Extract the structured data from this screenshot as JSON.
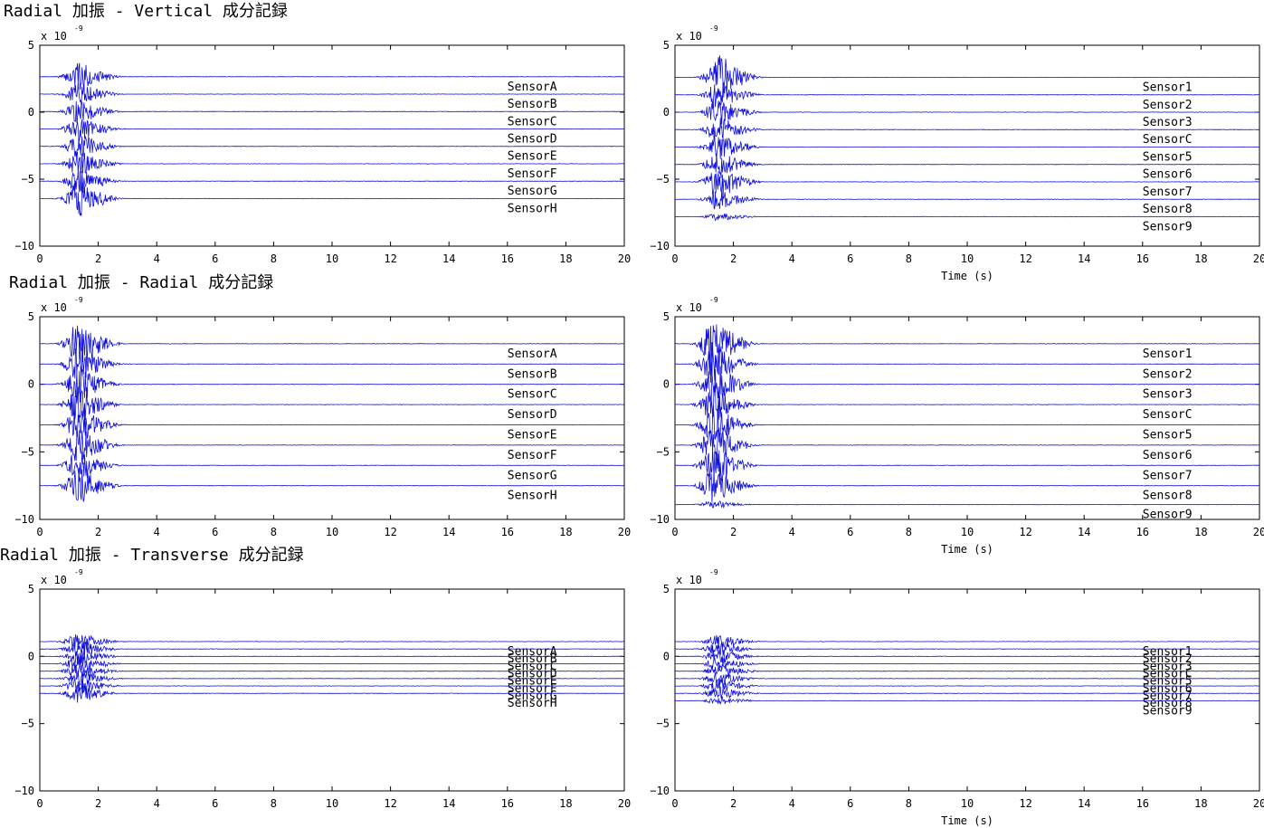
{
  "sections": [
    {
      "title": "Radial 加振 -  Vertical 成分記録"
    },
    {
      "title": "Radial 加振 -   Radial 成分記録"
    },
    {
      "title": "Radial 加振 - Transverse 成分記録"
    }
  ],
  "chart_data": [
    {
      "type": "line",
      "section": 0,
      "side": "left",
      "xlim": [
        0,
        20
      ],
      "ylim": [
        -10,
        5
      ],
      "xticks": [
        0,
        2,
        4,
        6,
        8,
        10,
        12,
        14,
        16,
        18,
        20
      ],
      "yticks": [
        5,
        0,
        -5,
        -10
      ],
      "y_multiplier": "x 10",
      "y_exponent": "-9",
      "xlabel": "",
      "onset_s": 0.45,
      "peak_s": 1.35,
      "envelope": [
        0,
        0.4
      ],
      "series": [
        {
          "name": "SensorA",
          "offset": 2.65,
          "amp": 1.0
        },
        {
          "name": "SensorB",
          "offset": 1.35,
          "amp": 0.8
        },
        {
          "name": "SensorC",
          "offset": 0.05,
          "amp": 0.9
        },
        {
          "name": "SensorD",
          "offset": -1.25,
          "amp": 0.9
        },
        {
          "name": "SensorE",
          "offset": -2.55,
          "amp": 0.9
        },
        {
          "name": "SensorF",
          "offset": -3.85,
          "amp": 0.9
        },
        {
          "name": "SensorG",
          "offset": -5.15,
          "amp": 0.9
        },
        {
          "name": "SensorH",
          "offset": -6.45,
          "amp": 1.3
        }
      ]
    },
    {
      "type": "line",
      "section": 0,
      "side": "right",
      "xlim": [
        0,
        20
      ],
      "ylim": [
        -10,
        5
      ],
      "xticks": [
        0,
        2,
        4,
        6,
        8,
        10,
        12,
        14,
        16,
        18,
        20
      ],
      "yticks": [
        5,
        0,
        -5,
        -10
      ],
      "y_multiplier": "x 10",
      "y_exponent": "-9",
      "xlabel": "Time (s)",
      "onset_s": 0.5,
      "peak_s": 1.5,
      "envelope": [
        0,
        0.4
      ],
      "series": [
        {
          "name": "Sensor1",
          "offset": 2.6,
          "amp": 1.6
        },
        {
          "name": "Sensor2",
          "offset": 1.3,
          "amp": 1.0
        },
        {
          "name": "Sensor3",
          "offset": 0.0,
          "amp": 1.0
        },
        {
          "name": "SensorC",
          "offset": -1.3,
          "amp": 1.0
        },
        {
          "name": "Sensor5",
          "offset": -2.6,
          "amp": 1.0
        },
        {
          "name": "Sensor6",
          "offset": -3.9,
          "amp": 1.0
        },
        {
          "name": "Sensor7",
          "offset": -5.2,
          "amp": 1.3
        },
        {
          "name": "Sensor8",
          "offset": -6.5,
          "amp": 0.8
        },
        {
          "name": "Sensor9",
          "offset": -7.8,
          "amp": 0.3
        }
      ]
    },
    {
      "type": "line",
      "section": 1,
      "side": "left",
      "xlim": [
        0,
        20
      ],
      "ylim": [
        -10,
        5
      ],
      "xticks": [
        0,
        2,
        4,
        6,
        8,
        10,
        12,
        14,
        16,
        18,
        20
      ],
      "yticks": [
        5,
        0,
        -5,
        -10
      ],
      "y_multiplier": "x 10",
      "y_exponent": "-9",
      "xlabel": "",
      "onset_s": 0.45,
      "peak_s": 1.35,
      "envelope": [
        0,
        0.4
      ],
      "series": [
        {
          "name": "SensorA",
          "offset": 3.0,
          "amp": 1.6
        },
        {
          "name": "SensorB",
          "offset": 1.5,
          "amp": 1.3
        },
        {
          "name": "SensorC",
          "offset": 0.0,
          "amp": 1.3
        },
        {
          "name": "SensorD",
          "offset": -1.5,
          "amp": 1.3
        },
        {
          "name": "SensorE",
          "offset": -3.0,
          "amp": 1.3
        },
        {
          "name": "SensorF",
          "offset": -4.5,
          "amp": 1.3
        },
        {
          "name": "SensorG",
          "offset": -6.0,
          "amp": 1.2
        },
        {
          "name": "SensorH",
          "offset": -7.5,
          "amp": 1.3
        }
      ]
    },
    {
      "type": "line",
      "section": 1,
      "side": "right",
      "xlim": [
        0,
        20
      ],
      "ylim": [
        -10,
        5
      ],
      "xticks": [
        0,
        2,
        4,
        6,
        8,
        10,
        12,
        14,
        16,
        18,
        20
      ],
      "yticks": [
        5,
        0,
        -5,
        -10
      ],
      "y_multiplier": "x 10",
      "y_exponent": "-9",
      "xlabel": "Time (s)",
      "onset_s": 0.5,
      "peak_s": 1.35,
      "envelope": [
        0,
        0.4
      ],
      "series": [
        {
          "name": "Sensor1",
          "offset": 3.0,
          "amp": 1.8
        },
        {
          "name": "Sensor2",
          "offset": 1.5,
          "amp": 1.5
        },
        {
          "name": "Sensor3",
          "offset": 0.0,
          "amp": 1.5
        },
        {
          "name": "SensorC",
          "offset": -1.5,
          "amp": 1.4
        },
        {
          "name": "Sensor5",
          "offset": -3.0,
          "amp": 1.4
        },
        {
          "name": "Sensor6",
          "offset": -4.5,
          "amp": 1.4
        },
        {
          "name": "Sensor7",
          "offset": -6.0,
          "amp": 1.4
        },
        {
          "name": "Sensor8",
          "offset": -7.5,
          "amp": 1.3
        },
        {
          "name": "Sensor9",
          "offset": -8.9,
          "amp": 0.3
        }
      ]
    },
    {
      "type": "line",
      "section": 2,
      "side": "left",
      "xlim": [
        0,
        20
      ],
      "ylim": [
        -10,
        5
      ],
      "xticks": [
        0,
        2,
        4,
        6,
        8,
        10,
        12,
        14,
        16,
        18,
        20
      ],
      "yticks": [
        5,
        0,
        -5,
        -10
      ],
      "y_multiplier": "x 10",
      "y_exponent": "-9",
      "xlabel": "",
      "onset_s": 0.5,
      "peak_s": 1.35,
      "envelope": [
        0,
        0.4
      ],
      "series": [
        {
          "name": "SensorA",
          "offset": 1.1,
          "amp": 0.7
        },
        {
          "name": "SensorB",
          "offset": 0.55,
          "amp": 0.6
        },
        {
          "name": "SensorC",
          "offset": 0.0,
          "amp": 0.6
        },
        {
          "name": "SensorD",
          "offset": -0.55,
          "amp": 0.6
        },
        {
          "name": "SensorE",
          "offset": -1.1,
          "amp": 0.6
        },
        {
          "name": "SensorF",
          "offset": -1.65,
          "amp": 0.6
        },
        {
          "name": "SensorG",
          "offset": -2.2,
          "amp": 0.6
        },
        {
          "name": "SensorH",
          "offset": -2.75,
          "amp": 0.7
        }
      ]
    },
    {
      "type": "line",
      "section": 2,
      "side": "right",
      "xlim": [
        0,
        20
      ],
      "ylim": [
        -10,
        5
      ],
      "xticks": [
        0,
        2,
        4,
        6,
        8,
        10,
        12,
        14,
        16,
        18,
        20
      ],
      "yticks": [
        5,
        0,
        -5,
        -10
      ],
      "y_multiplier": "x 10",
      "y_exponent": "-9",
      "xlabel": "Time (s)",
      "onset_s": 0.5,
      "peak_s": 1.5,
      "envelope": [
        0,
        0.4
      ],
      "series": [
        {
          "name": "Sensor1",
          "offset": 1.1,
          "amp": 0.5
        },
        {
          "name": "Sensor2",
          "offset": 0.55,
          "amp": 0.5
        },
        {
          "name": "Sensor3",
          "offset": 0.0,
          "amp": 0.5
        },
        {
          "name": "SensorC",
          "offset": -0.55,
          "amp": 0.5
        },
        {
          "name": "Sensor5",
          "offset": -1.1,
          "amp": 0.5
        },
        {
          "name": "Sensor6",
          "offset": -1.65,
          "amp": 0.5
        },
        {
          "name": "Sensor7",
          "offset": -2.2,
          "amp": 0.5
        },
        {
          "name": "Sensor8",
          "offset": -2.75,
          "amp": 0.5
        },
        {
          "name": "Sensor9",
          "offset": -3.3,
          "amp": 0.3
        }
      ]
    }
  ],
  "colors": {
    "trace": "#1010d8",
    "axes": "#000000",
    "background": "#ffffff"
  }
}
